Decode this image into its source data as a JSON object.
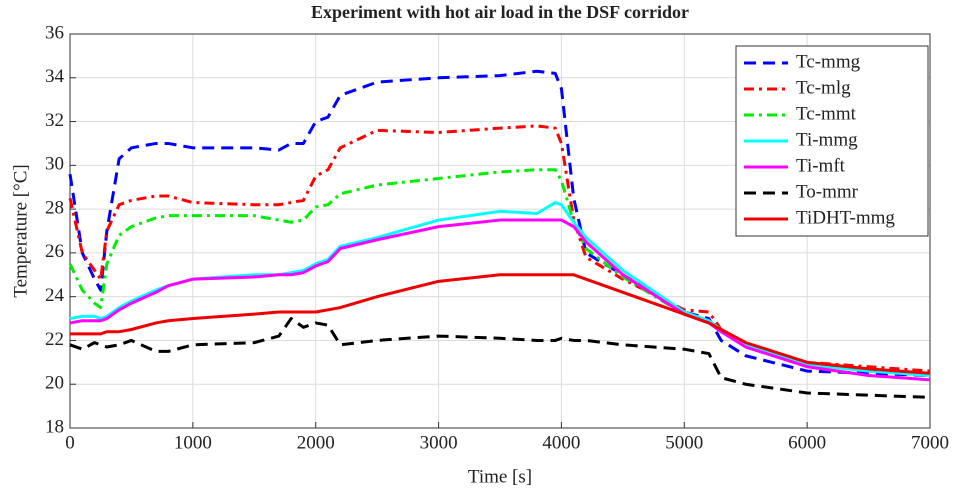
{
  "chart_data": {
    "type": "line",
    "title": "Experiment with hot air load in the DSF corridor",
    "xlabel": "Time [s]",
    "ylabel": "Temperature [°C]",
    "x": [
      0,
      100,
      200,
      250,
      300,
      400,
      500,
      700,
      800,
      1000,
      1500,
      1700,
      1800,
      1900,
      2000,
      2100,
      2200,
      2500,
      3000,
      3500,
      3800,
      3950,
      4000,
      4100,
      4200,
      4500,
      5000,
      5200,
      5300,
      5500,
      6000,
      6500,
      7000
    ],
    "series": [
      {
        "name": "Tc-mmg",
        "color": "#0000ff",
        "style": "dashed",
        "values": [
          29.6,
          26,
          24.8,
          24.3,
          27,
          30.3,
          30.8,
          31,
          31,
          30.8,
          30.8,
          30.7,
          31,
          31,
          32,
          32.2,
          33.2,
          33.8,
          34,
          34.1,
          34.3,
          34.2,
          33.5,
          28.5,
          26,
          25,
          23.3,
          23,
          22,
          21.3,
          20.6,
          20.5,
          20.4
        ]
      },
      {
        "name": "Tc-mlg",
        "color": "#ff0000",
        "style": "dashdot",
        "values": [
          28.5,
          26,
          25.2,
          24.8,
          27,
          28.2,
          28.4,
          28.6,
          28.6,
          28.3,
          28.2,
          28.2,
          28.3,
          28.4,
          29.5,
          29.8,
          30.8,
          31.6,
          31.5,
          31.7,
          31.8,
          31.7,
          31,
          27.5,
          25.8,
          24.8,
          23.4,
          23.3,
          22.5,
          21.8,
          21,
          20.8,
          20.6
        ]
      },
      {
        "name": "Tc-mmt",
        "color": "#00ee00",
        "style": "dashdot",
        "values": [
          25.5,
          24.3,
          23.7,
          23.5,
          25.5,
          26.8,
          27.2,
          27.6,
          27.7,
          27.7,
          27.7,
          27.5,
          27.4,
          27.5,
          28.1,
          28.2,
          28.7,
          29.1,
          29.4,
          29.7,
          29.8,
          29.8,
          29.3,
          27.4,
          26.2,
          24.9,
          23.2,
          22.8,
          22.4,
          21.8,
          21,
          20.7,
          20.5
        ]
      },
      {
        "name": "Ti-mmg",
        "color": "#00ffff",
        "style": "solid",
        "values": [
          23,
          23.1,
          23.1,
          23,
          23.1,
          23.5,
          23.8,
          24.3,
          24.5,
          24.8,
          25,
          25,
          25.1,
          25.2,
          25.5,
          25.7,
          26.3,
          26.7,
          27.5,
          27.9,
          27.8,
          28.3,
          28.2,
          27.4,
          26.7,
          25.2,
          23.3,
          22.9,
          22.5,
          21.8,
          20.9,
          20.6,
          20.4
        ]
      },
      {
        "name": "Ti-mft",
        "color": "#ff00ff",
        "style": "solid",
        "values": [
          22.8,
          22.9,
          22.9,
          22.9,
          23,
          23.4,
          23.7,
          24.2,
          24.5,
          24.8,
          24.9,
          25,
          25,
          25.1,
          25.4,
          25.6,
          26.2,
          26.6,
          27.2,
          27.5,
          27.5,
          27.5,
          27.5,
          27.2,
          26.5,
          25,
          23.2,
          22.8,
          22.4,
          21.7,
          20.8,
          20.4,
          20.2
        ]
      },
      {
        "name": "To-mmr",
        "color": "#000000",
        "style": "dashed",
        "values": [
          21.8,
          21.6,
          21.9,
          21.8,
          21.7,
          21.8,
          22,
          21.5,
          21.5,
          21.8,
          21.9,
          22.2,
          23,
          22.6,
          22.8,
          22.7,
          21.8,
          22,
          22.2,
          22.1,
          22,
          22,
          22.1,
          22,
          22,
          21.8,
          21.6,
          21.4,
          20.3,
          20,
          19.6,
          19.5,
          19.4
        ]
      },
      {
        "name": "TiDHT-mmg",
        "color": "#ee0000",
        "style": "solid",
        "values": [
          22.3,
          22.3,
          22.3,
          22.3,
          22.4,
          22.4,
          22.5,
          22.8,
          22.9,
          23,
          23.2,
          23.3,
          23.3,
          23.3,
          23.3,
          23.4,
          23.5,
          24,
          24.7,
          25,
          25,
          25,
          25,
          25,
          24.8,
          24.2,
          23.2,
          22.8,
          22.5,
          21.9,
          21,
          20.7,
          20.5
        ]
      }
    ],
    "xlim": [
      0,
      7000
    ],
    "xticks": [
      0,
      1000,
      2000,
      3000,
      4000,
      5000,
      6000,
      7000
    ],
    "ylim": [
      18,
      36
    ],
    "yticks": [
      18,
      20,
      22,
      24,
      26,
      28,
      30,
      32,
      34,
      36
    ],
    "grid": true,
    "legend": "upper right"
  }
}
